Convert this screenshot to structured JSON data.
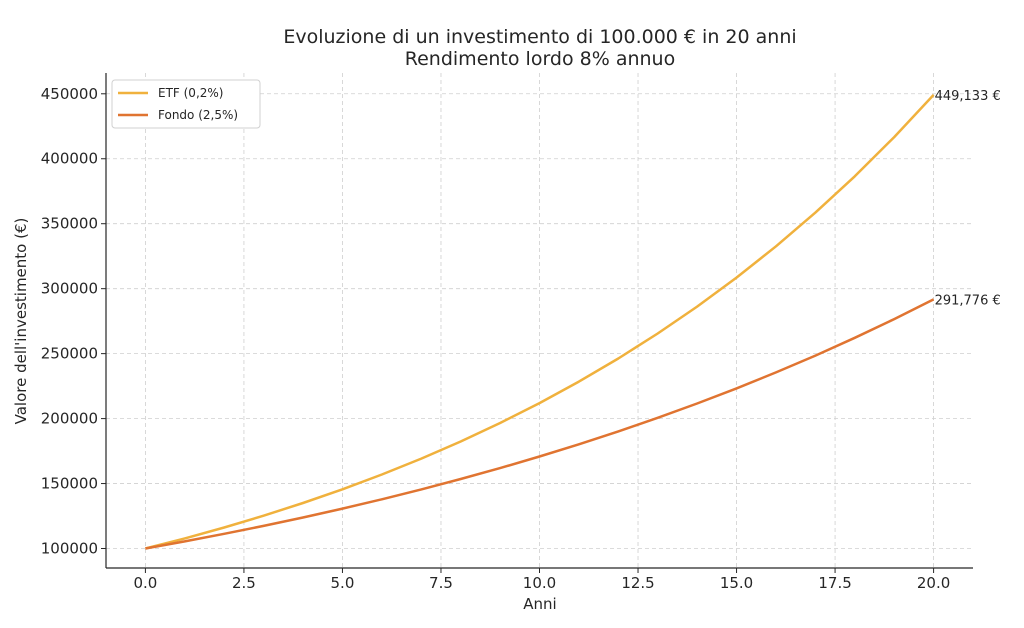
{
  "chart_data": {
    "type": "line",
    "title": [
      "Evoluzione di un investimento di 100.000 € in 20 anni",
      "Rendimento lordo 8% annuo"
    ],
    "xlabel": "Anni",
    "ylabel": "Valore dell'investimento (€)",
    "xlim": [
      -1,
      21
    ],
    "ylim": [
      85000,
      466000
    ],
    "xticks": [
      0.0,
      2.5,
      5.0,
      7.5,
      10.0,
      12.5,
      15.0,
      17.5,
      20.0
    ],
    "xtick_labels": [
      "0.0",
      "2.5",
      "5.0",
      "7.5",
      "10.0",
      "12.5",
      "15.0",
      "17.5",
      "20.0"
    ],
    "yticks": [
      100000,
      150000,
      200000,
      250000,
      300000,
      350000,
      400000,
      450000
    ],
    "ytick_labels": [
      "100000",
      "150000",
      "200000",
      "250000",
      "300000",
      "350000",
      "400000",
      "450000"
    ],
    "grid": true,
    "legend_position": "top-left",
    "x": [
      0,
      1,
      2,
      3,
      4,
      5,
      6,
      7,
      8,
      9,
      10,
      11,
      12,
      13,
      14,
      15,
      16,
      17,
      18,
      19,
      20
    ],
    "series": [
      {
        "name": "ETF (0,2%)",
        "color": "#f0b13d",
        "values": [
          100000,
          107800,
          116208,
          125272,
          135044,
          145577,
          156932,
          169173,
          182368,
          196593,
          211927,
          228457,
          246277,
          265487,
          286195,
          308518,
          332583,
          358524,
          386489,
          416635,
          449133
        ],
        "end_label": "449,133 €"
      },
      {
        "name": "Fondo (2,5%)",
        "color": "#e07431",
        "values": [
          100000,
          105500,
          111303,
          117424,
          123882,
          130696,
          137884,
          145468,
          153469,
          161909,
          170814,
          180209,
          190121,
          200578,
          211609,
          223248,
          235526,
          248480,
          262147,
          276565,
          291776
        ],
        "end_label": "291,776 €"
      }
    ]
  }
}
